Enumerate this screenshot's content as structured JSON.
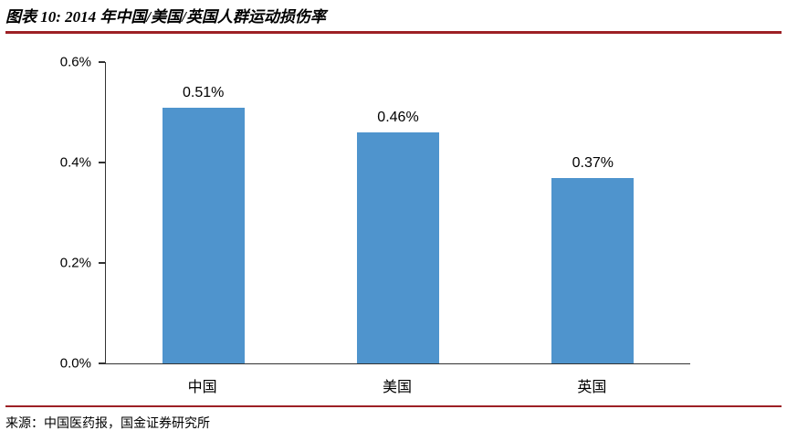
{
  "header": {
    "title": "图表 10: 2014 年中国/美国/英国人群运动损伤率",
    "accent_color": "#9d2025"
  },
  "chart_data": {
    "type": "bar",
    "title": "2014 年中国/美国/英国人群运动损伤率",
    "categories": [
      "中国",
      "美国",
      "英国"
    ],
    "values": [
      0.51,
      0.46,
      0.37
    ],
    "value_labels": [
      "0.51%",
      "0.46%",
      "0.37%"
    ],
    "y_tick_labels": [
      "0.6%",
      "0.4%",
      "0.2%",
      "0.0%"
    ],
    "ylim": [
      0,
      0.6
    ],
    "xlabel": "",
    "ylabel": "",
    "grid": "off",
    "legend": "none",
    "bar_color": "#4f94cd",
    "axis_color": "#333333"
  },
  "footer": {
    "source": "来源：中国医药报，国金证券研究所"
  }
}
